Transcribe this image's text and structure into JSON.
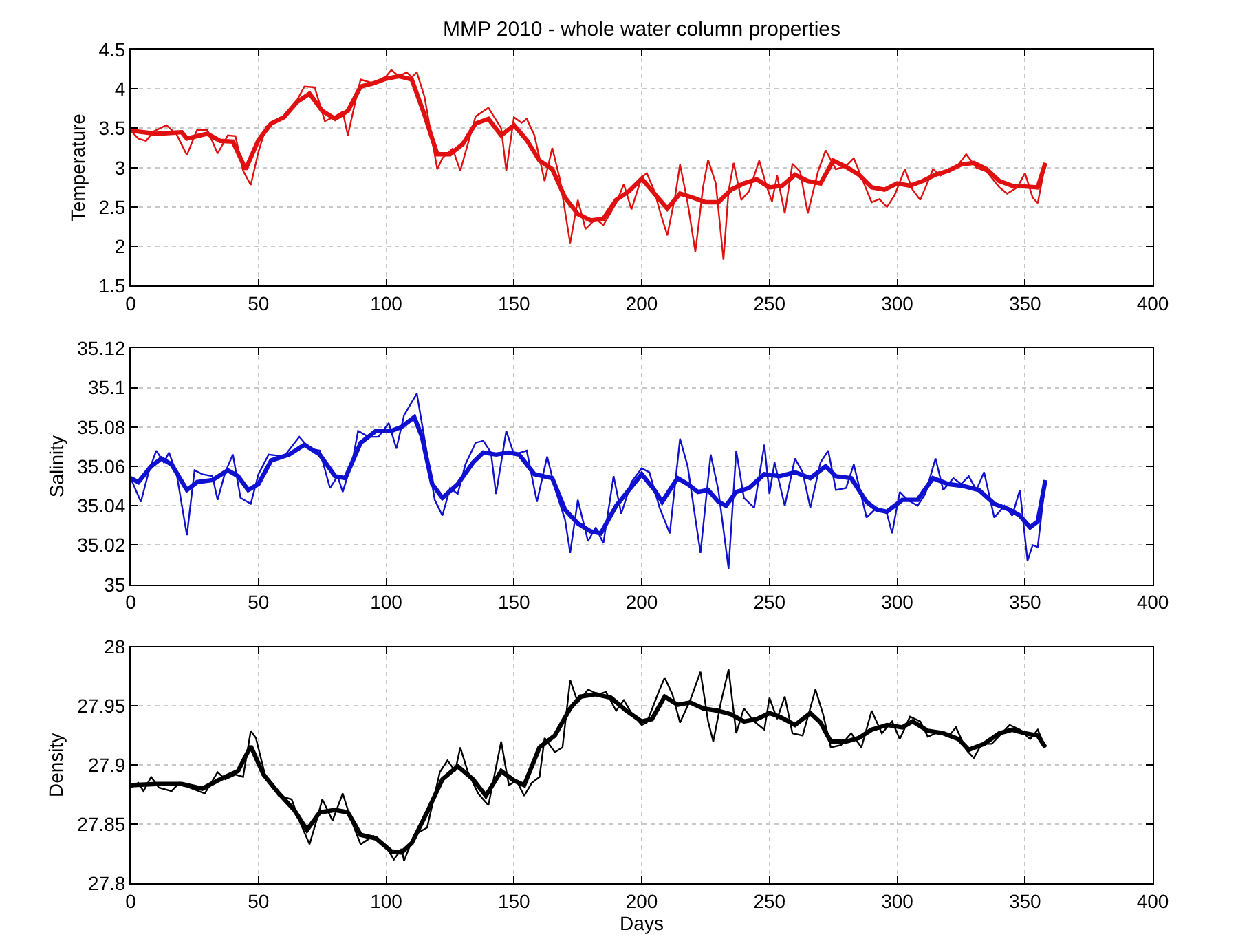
{
  "chart_data": [
    {
      "type": "line",
      "title": "MMP 2010 - whole water column properties",
      "ylabel": "Temperature",
      "xlim": [
        0,
        400
      ],
      "xticks": [
        0,
        50,
        100,
        150,
        200,
        250,
        300,
        350,
        400
      ],
      "ylim": [
        1.5,
        4.5
      ],
      "yticks": [
        1.5,
        2,
        2.5,
        3,
        3.5,
        4,
        4.5
      ],
      "grid": true,
      "marker": "none",
      "line_style": "solid",
      "series": [
        {
          "color": "#e01010",
          "x": [
            0,
            3,
            6,
            9,
            14,
            18,
            22,
            26,
            30,
            34,
            38,
            41,
            44,
            47,
            50,
            53,
            60,
            65,
            68,
            72,
            76,
            80,
            83,
            85,
            88,
            90,
            95,
            100,
            102,
            105,
            108,
            110,
            112,
            115,
            120,
            122,
            126,
            129,
            135,
            140,
            145,
            147,
            150,
            153,
            155,
            158,
            162,
            165,
            168,
            172,
            175,
            178,
            182,
            185,
            190,
            193,
            196,
            200,
            202,
            205,
            207,
            210,
            213,
            215,
            218,
            221,
            224,
            226,
            229,
            232,
            234,
            236,
            239,
            242,
            246,
            249,
            251,
            253,
            256,
            259,
            262,
            265,
            269,
            272,
            276,
            280,
            283,
            287,
            290,
            293,
            296,
            299,
            303,
            306,
            309,
            312,
            314,
            317,
            320,
            323,
            327,
            331,
            335,
            340,
            343,
            347,
            350,
            353,
            355,
            358
          ],
          "values": [
            3.47,
            3.37,
            3.34,
            3.46,
            3.54,
            3.42,
            3.16,
            3.48,
            3.48,
            3.18,
            3.41,
            3.4,
            2.96,
            2.78,
            3.2,
            3.52,
            3.65,
            3.85,
            4.03,
            4.02,
            3.59,
            3.65,
            3.71,
            3.41,
            3.85,
            4.12,
            4.07,
            4.16,
            4.24,
            4.16,
            4.21,
            4.15,
            4.21,
            3.9,
            2.98,
            3.12,
            3.24,
            2.96,
            3.65,
            3.76,
            3.5,
            2.96,
            3.64,
            3.57,
            3.62,
            3.41,
            2.83,
            3.25,
            2.85,
            2.04,
            2.59,
            2.22,
            2.35,
            2.27,
            2.55,
            2.79,
            2.47,
            2.88,
            2.93,
            2.7,
            2.46,
            2.14,
            2.62,
            3.04,
            2.55,
            1.93,
            2.75,
            3.1,
            2.8,
            1.83,
            2.7,
            3.06,
            2.59,
            2.7,
            3.09,
            2.75,
            2.57,
            2.9,
            2.42,
            3.05,
            2.95,
            2.42,
            2.95,
            3.22,
            2.98,
            3.02,
            3.12,
            2.8,
            2.56,
            2.6,
            2.5,
            2.65,
            2.98,
            2.72,
            2.59,
            2.82,
            2.98,
            2.9,
            2.98,
            3.0,
            3.17,
            3.0,
            2.95,
            2.75,
            2.67,
            2.75,
            2.93,
            2.62,
            2.55,
            3.06
          ]
        },
        {
          "color": "#e01010",
          "x": [
            0,
            10,
            20,
            22,
            30,
            35,
            40,
            45,
            50,
            55,
            60,
            65,
            70,
            75,
            80,
            85,
            90,
            95,
            100,
            105,
            110,
            115,
            120,
            125,
            130,
            135,
            140,
            145,
            150,
            155,
            160,
            165,
            170,
            175,
            180,
            185,
            190,
            195,
            200,
            205,
            210,
            215,
            220,
            225,
            230,
            235,
            240,
            245,
            250,
            255,
            260,
            265,
            270,
            275,
            280,
            285,
            290,
            295,
            300,
            305,
            310,
            315,
            320,
            325,
            330,
            335,
            340,
            345,
            350,
            355,
            358
          ],
          "values": [
            3.47,
            3.43,
            3.45,
            3.37,
            3.43,
            3.34,
            3.33,
            2.98,
            3.35,
            3.56,
            3.64,
            3.83,
            3.94,
            3.72,
            3.62,
            3.72,
            4.03,
            4.07,
            4.13,
            4.16,
            4.12,
            3.67,
            3.17,
            3.17,
            3.3,
            3.56,
            3.62,
            3.41,
            3.54,
            3.35,
            3.09,
            2.98,
            2.62,
            2.41,
            2.33,
            2.35,
            2.59,
            2.7,
            2.86,
            2.67,
            2.48,
            2.67,
            2.62,
            2.56,
            2.56,
            2.72,
            2.8,
            2.85,
            2.75,
            2.77,
            2.91,
            2.83,
            2.8,
            3.09,
            3.01,
            2.91,
            2.75,
            2.72,
            2.8,
            2.77,
            2.83,
            2.91,
            2.96,
            3.04,
            3.06,
            2.98,
            2.83,
            2.77,
            2.76,
            2.75,
            3.06
          ]
        }
      ]
    },
    {
      "type": "line",
      "ylabel": "Salinity",
      "xlim": [
        0,
        400
      ],
      "xticks": [
        0,
        50,
        100,
        150,
        200,
        250,
        300,
        350,
        400
      ],
      "ylim": [
        35,
        35.12
      ],
      "yticks": [
        35,
        35.02,
        35.04,
        35.06,
        35.08,
        35.1,
        35.12
      ],
      "grid": true,
      "marker": "none",
      "line_style": "solid",
      "series": [
        {
          "color": "#1010d0",
          "x": [
            0,
            4,
            7,
            10,
            13,
            15,
            18,
            22,
            25,
            28,
            32,
            34,
            37,
            40,
            43,
            47,
            50,
            54,
            60,
            66,
            70,
            74,
            78,
            81,
            83,
            87,
            89,
            93,
            97,
            101,
            104,
            107,
            112,
            115,
            119,
            122,
            125,
            128,
            131,
            135,
            138,
            141,
            143,
            147,
            150,
            155,
            159,
            163,
            166,
            170,
            172,
            175,
            179,
            182,
            185,
            189,
            192,
            196,
            200,
            203,
            207,
            211,
            215,
            218,
            223,
            227,
            230,
            234,
            237,
            240,
            244,
            248,
            250,
            252,
            256,
            260,
            263,
            266,
            270,
            273,
            276,
            280,
            283,
            288,
            292,
            296,
            298,
            301,
            304,
            308,
            311,
            315,
            318,
            322,
            325,
            328,
            331,
            334,
            338,
            342,
            345,
            348,
            351,
            353,
            355,
            358
          ],
          "values": [
            35.054,
            35.042,
            35.057,
            35.068,
            35.062,
            35.067,
            35.056,
            35.025,
            35.058,
            35.056,
            35.055,
            35.043,
            35.057,
            35.066,
            35.044,
            35.041,
            35.056,
            35.066,
            35.065,
            35.075,
            35.069,
            35.068,
            35.049,
            35.055,
            35.047,
            35.064,
            35.078,
            35.075,
            35.075,
            35.082,
            35.069,
            35.086,
            35.097,
            35.074,
            35.043,
            35.035,
            35.049,
            35.046,
            35.061,
            35.072,
            35.073,
            35.067,
            35.046,
            35.078,
            35.066,
            35.068,
            35.042,
            35.065,
            35.049,
            35.033,
            35.016,
            35.043,
            35.022,
            35.029,
            35.021,
            35.055,
            35.036,
            35.052,
            35.059,
            35.057,
            35.039,
            35.026,
            35.074,
            35.06,
            35.016,
            35.066,
            35.048,
            35.008,
            35.068,
            35.044,
            35.039,
            35.071,
            35.046,
            35.062,
            35.04,
            35.064,
            35.057,
            35.039,
            35.062,
            35.068,
            35.048,
            35.049,
            35.061,
            35.034,
            35.039,
            35.036,
            35.026,
            35.047,
            35.043,
            35.04,
            35.046,
            35.064,
            35.048,
            35.054,
            35.051,
            35.055,
            35.048,
            35.057,
            35.034,
            35.04,
            35.035,
            35.048,
            35.012,
            35.02,
            35.019,
            35.053
          ]
        },
        {
          "color": "#1010d0",
          "x": [
            0,
            3,
            8,
            12,
            16,
            22,
            26,
            32,
            38,
            42,
            46,
            50,
            55,
            62,
            68,
            74,
            80,
            84,
            90,
            96,
            102,
            106,
            111,
            114,
            118,
            122,
            128,
            134,
            138,
            143,
            148,
            152,
            158,
            165,
            170,
            175,
            180,
            184,
            190,
            195,
            200,
            205,
            208,
            214,
            218,
            222,
            226,
            230,
            233,
            237,
            242,
            248,
            254,
            260,
            266,
            272,
            276,
            282,
            288,
            292,
            296,
            302,
            308,
            314,
            320,
            326,
            332,
            338,
            344,
            348,
            352,
            355,
            358
          ],
          "values": [
            35.054,
            35.052,
            35.06,
            35.064,
            35.061,
            35.048,
            35.052,
            35.053,
            35.058,
            35.055,
            35.048,
            35.051,
            35.063,
            35.066,
            35.071,
            35.066,
            35.055,
            35.054,
            35.072,
            35.078,
            35.078,
            35.08,
            35.085,
            35.075,
            35.051,
            35.044,
            35.051,
            35.062,
            35.067,
            35.066,
            35.067,
            35.066,
            35.056,
            35.054,
            35.038,
            35.031,
            35.027,
            35.026,
            35.04,
            35.048,
            35.056,
            35.048,
            35.042,
            35.054,
            35.051,
            35.047,
            35.048,
            35.042,
            35.04,
            35.047,
            35.049,
            35.056,
            35.055,
            35.057,
            35.054,
            35.06,
            35.055,
            35.054,
            35.042,
            35.038,
            35.037,
            35.043,
            35.043,
            35.054,
            35.051,
            35.05,
            35.048,
            35.041,
            35.038,
            35.035,
            35.029,
            35.032,
            35.053
          ]
        }
      ]
    },
    {
      "type": "line",
      "xlabel": "Days",
      "ylabel": "Density",
      "xlim": [
        0,
        400
      ],
      "xticks": [
        0,
        50,
        100,
        150,
        200,
        250,
        300,
        350,
        400
      ],
      "ylim": [
        27.8,
        28
      ],
      "yticks": [
        27.8,
        27.85,
        27.9,
        27.95,
        28
      ],
      "grid": true,
      "marker": "none",
      "line_style": "solid",
      "series": [
        {
          "color": "#000000",
          "x": [
            0,
            3,
            5,
            8,
            11,
            16,
            19,
            23,
            29,
            34,
            37,
            41,
            44,
            47,
            49,
            53,
            58,
            63,
            66,
            70,
            73,
            75,
            79,
            83,
            86,
            90,
            95,
            100,
            103,
            106,
            107,
            111,
            116,
            121,
            124,
            127,
            129,
            132,
            136,
            140,
            145,
            148,
            151,
            154,
            157,
            160,
            162,
            166,
            169,
            172,
            175,
            179,
            183,
            186,
            190,
            193,
            196,
            200,
            202,
            207,
            209,
            212,
            215,
            219,
            223,
            226,
            228,
            231,
            234,
            237,
            240,
            244,
            248,
            250,
            253,
            256,
            259,
            263,
            268,
            271,
            274,
            278,
            282,
            286,
            290,
            294,
            298,
            301,
            305,
            309,
            312,
            316,
            320,
            323,
            327,
            330,
            333,
            337,
            341,
            344,
            348,
            352,
            355,
            358
          ],
          "values": [
            27.881,
            27.885,
            27.878,
            27.89,
            27.881,
            27.878,
            27.885,
            27.881,
            27.876,
            27.894,
            27.888,
            27.892,
            27.89,
            27.929,
            27.923,
            27.888,
            27.874,
            27.871,
            27.853,
            27.833,
            27.855,
            27.871,
            27.853,
            27.876,
            27.855,
            27.833,
            27.84,
            27.831,
            27.82,
            27.829,
            27.819,
            27.841,
            27.847,
            27.894,
            27.904,
            27.895,
            27.915,
            27.894,
            27.876,
            27.866,
            27.92,
            27.883,
            27.887,
            27.874,
            27.885,
            27.89,
            27.923,
            27.911,
            27.915,
            27.972,
            27.953,
            27.964,
            27.96,
            27.962,
            27.946,
            27.955,
            27.944,
            27.934,
            27.936,
            27.964,
            27.974,
            27.96,
            27.936,
            27.955,
            27.979,
            27.937,
            27.92,
            27.953,
            27.981,
            27.927,
            27.948,
            27.937,
            27.93,
            27.957,
            27.939,
            27.958,
            27.927,
            27.925,
            27.964,
            27.943,
            27.915,
            27.917,
            27.927,
            27.915,
            27.946,
            27.927,
            27.937,
            27.922,
            27.941,
            27.937,
            27.924,
            27.928,
            27.924,
            27.932,
            27.913,
            27.906,
            27.918,
            27.918,
            27.927,
            27.934,
            27.93,
            27.922,
            27.93,
            27.915
          ]
        },
        {
          "color": "#000000",
          "x": [
            0,
            10,
            20,
            28,
            35,
            42,
            47,
            52,
            58,
            64,
            69,
            74,
            80,
            85,
            90,
            96,
            102,
            106,
            110,
            116,
            122,
            128,
            134,
            139,
            145,
            150,
            154,
            160,
            166,
            172,
            176,
            182,
            188,
            194,
            200,
            204,
            209,
            214,
            219,
            224,
            230,
            235,
            240,
            245,
            250,
            254,
            260,
            266,
            270,
            274,
            280,
            285,
            290,
            296,
            302,
            306,
            312,
            318,
            324,
            328,
            334,
            340,
            345,
            350,
            355,
            358
          ],
          "values": [
            27.883,
            27.884,
            27.884,
            27.88,
            27.888,
            27.895,
            27.916,
            27.892,
            27.876,
            27.862,
            27.845,
            27.86,
            27.862,
            27.86,
            27.841,
            27.838,
            27.827,
            27.826,
            27.834,
            27.86,
            27.888,
            27.899,
            27.888,
            27.874,
            27.895,
            27.887,
            27.883,
            27.915,
            27.925,
            27.948,
            27.958,
            27.96,
            27.957,
            27.946,
            27.937,
            27.939,
            27.958,
            27.951,
            27.953,
            27.948,
            27.946,
            27.943,
            27.937,
            27.939,
            27.944,
            27.941,
            27.934,
            27.944,
            27.936,
            27.92,
            27.92,
            27.923,
            27.93,
            27.934,
            27.932,
            27.937,
            27.929,
            27.927,
            27.922,
            27.913,
            27.918,
            27.927,
            27.93,
            27.927,
            27.925,
            27.915
          ]
        }
      ]
    }
  ]
}
